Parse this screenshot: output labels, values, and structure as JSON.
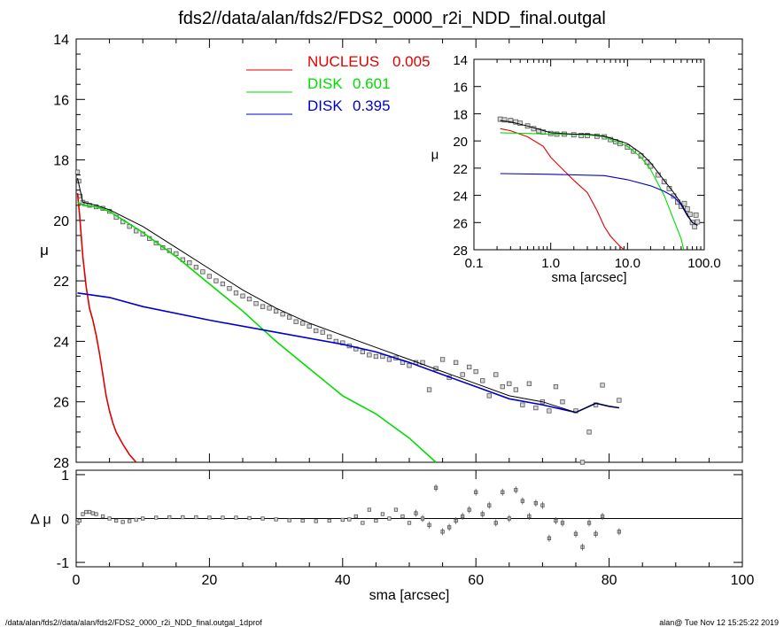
{
  "title": "fds2//data/alan/fds2/FDS2_0000_r2i_NDD_final.outgal",
  "footer": {
    "left": "/data/alan/fds2//data/alan/fds2/FDS2_0000_r2i_NDD_final.outgal_1dprof",
    "right": "alan@  Tue Nov 12 15:25:22 2019"
  },
  "colors": {
    "nucleus": "#e00000",
    "disk1": "#00dd00",
    "disk2": "#0000cc",
    "data": "#666666"
  },
  "chart_data": [
    {
      "type": "line",
      "panel": "main",
      "xlabel": "",
      "ylabel": "μ",
      "xlim": [
        0,
        100
      ],
      "ylim": [
        28,
        14
      ],
      "y_inverted": true,
      "yticks": [
        "14",
        "16",
        "18",
        "20",
        "22",
        "24",
        "26",
        "28"
      ],
      "legend": {
        "placement": "top-center",
        "entries": [
          {
            "name": "NUCLEUS",
            "value": "0.005",
            "color": "#e00000"
          },
          {
            "name": "DISK",
            "value": "0.601",
            "color": "#00dd00"
          },
          {
            "name": "DISK",
            "value": "0.395",
            "color": "#0000cc"
          }
        ]
      },
      "series": [
        {
          "name": "NUCLEUS",
          "color": "#e00000",
          "x": [
            0.2,
            0.5,
            1.0,
            1.5,
            2.0,
            2.5,
            3.0,
            3.5,
            4.0,
            4.5,
            5.0,
            5.5,
            6.0,
            7.0,
            8.0,
            9.0
          ],
          "y": [
            19.1,
            19.8,
            21.2,
            22.2,
            22.9,
            23.3,
            23.8,
            24.4,
            25.1,
            25.8,
            26.3,
            26.7,
            27.0,
            27.4,
            27.75,
            28.0
          ]
        },
        {
          "name": "DISK",
          "color": "#00dd00",
          "x": [
            0.2,
            1,
            3,
            5,
            10,
            15,
            20,
            25,
            30,
            35,
            40,
            45,
            50,
            54
          ],
          "y": [
            19.4,
            19.5,
            19.55,
            19.7,
            20.4,
            21.2,
            22.1,
            23.0,
            24.0,
            24.9,
            25.8,
            26.4,
            27.2,
            28.0
          ]
        },
        {
          "name": "DISK",
          "color": "#0000cc",
          "x": [
            0.2,
            5,
            10,
            20,
            30,
            40,
            45,
            50,
            55,
            60,
            65,
            70,
            75,
            78,
            80,
            81.5
          ],
          "y": [
            22.4,
            22.55,
            22.85,
            23.3,
            23.7,
            24.1,
            24.35,
            24.7,
            25.1,
            25.5,
            25.9,
            26.1,
            26.35,
            26.05,
            26.15,
            26.2
          ]
        },
        {
          "name": "total",
          "color": "#000000",
          "x": [
            0.2,
            1,
            3,
            5,
            10,
            15,
            20,
            25,
            30,
            35,
            40,
            45,
            50,
            55,
            60,
            65,
            70,
            75,
            78,
            80,
            81.5
          ],
          "y": [
            18.6,
            19.4,
            19.5,
            19.65,
            20.2,
            20.9,
            21.6,
            22.3,
            22.9,
            23.4,
            23.8,
            24.2,
            24.6,
            25.0,
            25.4,
            25.8,
            26.0,
            26.35,
            26.05,
            26.15,
            26.2
          ]
        }
      ],
      "points": {
        "name": "data",
        "x": [
          0.2,
          0.4,
          0.6,
          1.0,
          1.5,
          2,
          3,
          4,
          5,
          6,
          7,
          8,
          9,
          10,
          11,
          12,
          13,
          14,
          15,
          16,
          17,
          18,
          19,
          20,
          21,
          22,
          23,
          24,
          25,
          26,
          27,
          28,
          29,
          30,
          31,
          32,
          33,
          34,
          35,
          36,
          37,
          38,
          39,
          40,
          41,
          42,
          43,
          44,
          45,
          46,
          47,
          48,
          49,
          50,
          51,
          52,
          53,
          54,
          55,
          56,
          57,
          58,
          59,
          60,
          61,
          62,
          63,
          64,
          65,
          66,
          67,
          68,
          69,
          70,
          71,
          72,
          73,
          75,
          76,
          77,
          78,
          79,
          81.5
        ],
        "y": [
          18.4,
          18.7,
          19.2,
          19.4,
          19.45,
          19.5,
          19.55,
          19.6,
          19.7,
          19.9,
          20.05,
          20.2,
          20.35,
          20.45,
          20.6,
          20.75,
          20.9,
          21.0,
          21.1,
          21.3,
          21.4,
          21.55,
          21.7,
          21.85,
          22.0,
          22.1,
          22.25,
          22.4,
          22.5,
          22.6,
          22.75,
          22.85,
          22.9,
          23.0,
          23.1,
          23.2,
          23.35,
          23.4,
          23.5,
          23.65,
          23.7,
          23.85,
          24.0,
          24.05,
          24.15,
          24.25,
          24.35,
          24.45,
          24.5,
          24.5,
          24.6,
          24.55,
          24.7,
          24.8,
          24.7,
          24.7,
          25.6,
          24.9,
          24.6,
          25.2,
          24.7,
          25.1,
          24.85,
          25.0,
          25.3,
          25.8,
          25.1,
          25.5,
          25.4,
          25.6,
          26.1,
          25.4,
          26.2,
          26.0,
          26.3,
          25.5,
          26.0,
          26.3,
          28.0,
          27.0,
          26.1,
          25.45,
          25.95
        ]
      }
    },
    {
      "type": "scatter",
      "panel": "residual",
      "xlabel": "sma [arcsec]",
      "ylabel": "Δ μ",
      "xlim": [
        0,
        100
      ],
      "ylim": [
        -1.1,
        1.1
      ],
      "xticks": [
        "0",
        "20",
        "40",
        "60",
        "80",
        "100"
      ],
      "yticks": [
        "-1",
        "0",
        "1"
      ],
      "points": {
        "x": [
          0.2,
          0.5,
          1,
          1.5,
          2,
          2.5,
          3,
          4,
          5,
          6,
          7,
          8,
          9,
          10,
          12,
          14,
          16,
          18,
          20,
          22,
          24,
          26,
          28,
          30,
          32,
          34,
          36,
          38,
          40,
          41,
          42,
          43,
          44,
          45,
          46,
          47,
          48,
          49,
          50,
          51,
          52,
          53,
          54,
          55,
          56,
          57,
          58,
          59,
          60,
          61,
          62,
          63,
          64,
          65,
          66,
          67,
          68,
          69,
          70,
          71,
          72,
          73,
          75,
          76,
          77,
          78,
          79,
          81.5
        ],
        "y": [
          -0.1,
          -0.05,
          0.1,
          0.15,
          0.15,
          0.12,
          0.1,
          0.05,
          0.0,
          -0.05,
          -0.08,
          -0.06,
          -0.03,
          0.0,
          0.02,
          0.03,
          0.03,
          0.03,
          0.02,
          0.02,
          0.02,
          0.01,
          0.0,
          -0.02,
          -0.04,
          -0.05,
          -0.06,
          -0.05,
          -0.03,
          -0.02,
          0.05,
          -0.1,
          0.2,
          -0.05,
          0.1,
          0.0,
          0.2,
          0.05,
          -0.1,
          0.12,
          0.0,
          -0.15,
          0.7,
          -0.3,
          -0.2,
          -0.05,
          0.05,
          0.2,
          0.6,
          0.1,
          0.3,
          -0.1,
          0.6,
          0.0,
          0.65,
          0.4,
          0.05,
          0.35,
          0.3,
          -0.45,
          -0.05,
          -0.1,
          -0.35,
          -0.65,
          -0.1,
          -0.35,
          0.05,
          -0.3
        ]
      }
    },
    {
      "type": "line",
      "panel": "inset",
      "xlabel": "sma [arcsec]",
      "ylabel": "μ",
      "xscale": "log",
      "xlim": [
        0.1,
        100
      ],
      "ylim": [
        28,
        14
      ],
      "y_inverted": true,
      "xticks": [
        "0.1",
        "1.0",
        "10.0",
        "100.0"
      ],
      "yticks": [
        "14",
        "16",
        "18",
        "20",
        "22",
        "24",
        "26",
        "28"
      ],
      "series": [
        {
          "name": "NUCLEUS",
          "color": "#e00000",
          "x": [
            0.22,
            0.3,
            0.5,
            0.8,
            1.0,
            1.5,
            2.0,
            3.0,
            4.0,
            5.0,
            6.0,
            8.0,
            9.0
          ],
          "y": [
            19.1,
            19.25,
            19.7,
            20.4,
            21.2,
            22.2,
            22.9,
            23.8,
            25.1,
            26.3,
            27.0,
            27.75,
            28.0
          ]
        },
        {
          "name": "DISK",
          "color": "#00dd00",
          "x": [
            0.22,
            0.5,
            1,
            2,
            3,
            5,
            10,
            15,
            20,
            30,
            40,
            50,
            54
          ],
          "y": [
            19.4,
            19.45,
            19.5,
            19.52,
            19.55,
            19.7,
            20.4,
            21.2,
            22.1,
            24.0,
            25.8,
            27.2,
            28.0
          ]
        },
        {
          "name": "DISK",
          "color": "#0000cc",
          "x": [
            0.22,
            1,
            5,
            10,
            20,
            30,
            40,
            50,
            60,
            70,
            81.5
          ],
          "y": [
            22.4,
            22.45,
            22.55,
            22.85,
            23.3,
            23.7,
            24.1,
            24.7,
            25.5,
            26.0,
            26.2
          ]
        },
        {
          "name": "total",
          "color": "#000000",
          "x": [
            0.22,
            0.3,
            0.5,
            1,
            2,
            3,
            5,
            10,
            15,
            20,
            30,
            40,
            50,
            60,
            70,
            81.5
          ],
          "y": [
            18.5,
            18.6,
            18.9,
            19.4,
            19.5,
            19.5,
            19.65,
            20.2,
            20.9,
            21.6,
            22.9,
            23.8,
            24.6,
            25.4,
            26.0,
            26.2
          ]
        }
      ],
      "points": {
        "name": "data",
        "x": [
          0.22,
          0.25,
          0.3,
          0.35,
          0.4,
          0.5,
          0.6,
          0.7,
          0.8,
          1.0,
          1.2,
          1.5,
          2,
          2.5,
          3,
          4,
          5,
          6,
          7,
          8,
          10,
          12,
          15,
          18,
          20,
          25,
          30,
          35,
          40,
          45,
          50,
          55,
          60,
          65,
          70,
          75,
          78,
          81.5
        ],
        "y": [
          18.4,
          18.45,
          18.5,
          18.6,
          18.7,
          18.9,
          19.1,
          19.25,
          19.35,
          19.45,
          19.5,
          19.5,
          19.55,
          19.6,
          19.6,
          19.65,
          19.7,
          19.9,
          20.05,
          20.2,
          20.45,
          20.75,
          21.1,
          21.55,
          21.85,
          22.5,
          23.0,
          23.5,
          24.05,
          24.5,
          24.8,
          24.6,
          25.0,
          25.4,
          26.0,
          26.3,
          25.45,
          25.95
        ]
      }
    }
  ]
}
